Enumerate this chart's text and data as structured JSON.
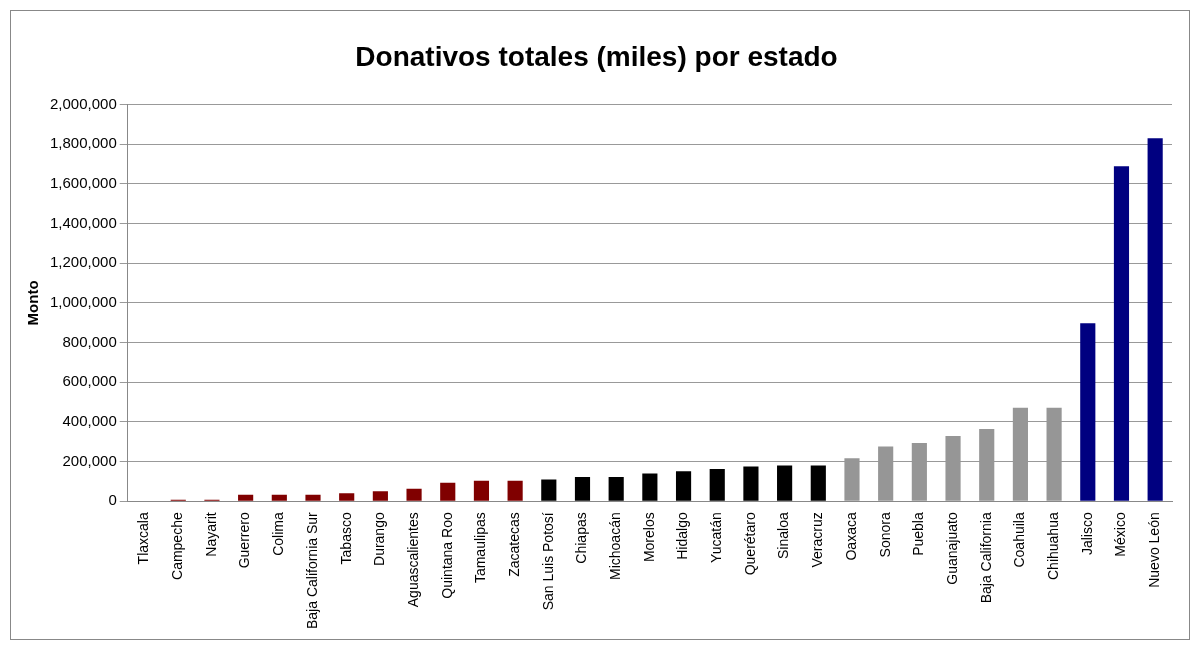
{
  "chart_data": {
    "type": "bar",
    "title": "Donativos totales (miles) por estado",
    "ylabel": "Monto",
    "categories": [
      "Tlaxcala",
      "Campeche",
      "Nayarit",
      "Guerrero",
      "Colima",
      "Baja California Sur",
      "Tabasco",
      "Durango",
      "Aguascalientes",
      "Quintana Roo",
      "Tamaulipas",
      "Zacatecas",
      "San Luis Potosí",
      "Chiapas",
      "Michoacán",
      "Morelos",
      "Hidalgo",
      "Yucatán",
      "Querétaro",
      "Sinaloa",
      "Veracruz",
      "Oaxaca",
      "Sonora",
      "Puebla",
      "Guanajuato",
      "Baja California",
      "Coahuila",
      "Chihuahua",
      "Jalisco",
      "México",
      "Nuevo León"
    ],
    "values": [
      0,
      8000,
      8000,
      33000,
      33000,
      33000,
      40000,
      51000,
      63000,
      93000,
      104000,
      104000,
      110000,
      122000,
      122000,
      140000,
      151000,
      163000,
      175000,
      181000,
      181000,
      217000,
      276000,
      294000,
      329000,
      365000,
      471000,
      471000,
      897000,
      1689000,
      1830000
    ],
    "colors": [
      "#800000",
      "#800000",
      "#800000",
      "#800000",
      "#800000",
      "#800000",
      "#800000",
      "#800000",
      "#800000",
      "#800000",
      "#800000",
      "#800000",
      "#000000",
      "#000000",
      "#000000",
      "#000000",
      "#000000",
      "#000000",
      "#000000",
      "#000000",
      "#000000",
      "#969696",
      "#969696",
      "#969696",
      "#969696",
      "#969696",
      "#969696",
      "#969696",
      "#000080",
      "#000080",
      "#000080"
    ],
    "ylim": [
      0,
      2000000
    ],
    "yticks": [
      0,
      {
        "value": 200000,
        "label": "200,000"
      },
      {
        "value": 400000,
        "label": "400,000"
      },
      {
        "value": 600000,
        "label": "600,000"
      },
      {
        "value": 800000,
        "label": "800,000"
      },
      {
        "value": 1000000,
        "label": "1,000,000"
      },
      {
        "value": 1200000,
        "label": "1,200,000"
      },
      {
        "value": 1400000,
        "label": "1,400,000"
      },
      {
        "value": 1600000,
        "label": "1,600,000"
      },
      {
        "value": 1800000,
        "label": "1,800,000"
      },
      {
        "value": 2000000,
        "label": "2,000,000"
      }
    ],
    "grid": "y",
    "legend": false
  }
}
